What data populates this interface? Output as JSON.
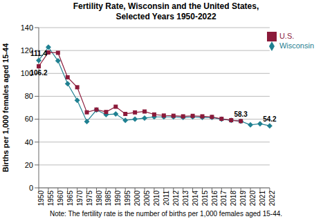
{
  "chart_data": {
    "type": "line",
    "title": "Fertility Rate, Wisconsin and the United States,\nSelected Years 1950-2022",
    "y_label": "Births per 1,000 females aged 15-44",
    "note": "Note: The fertility rate is the number of births per 1,000 females aged 15-44.",
    "categories": [
      "1950",
      "1955",
      "1960",
      "1965",
      "1970",
      "1975",
      "1980",
      "1985",
      "1990",
      "1995",
      "2000",
      "2005",
      "2010",
      "2011",
      "2012",
      "2013",
      "2014",
      "2015",
      "2016",
      "2017",
      "2018",
      "2019",
      "2020",
      "2021",
      "2022"
    ],
    "series": [
      {
        "name": "Wisconsin",
        "color": "#1f8091",
        "marker": "diamond",
        "values": [
          111.4,
          123,
          111,
          91,
          76.5,
          58,
          68,
          64,
          64.5,
          59,
          60,
          61,
          62,
          62,
          62,
          61.5,
          62,
          61.5,
          61.5,
          60,
          59,
          58.3,
          55,
          56,
          54.2
        ]
      },
      {
        "name": "U.S.",
        "color": "#8b1a3a",
        "marker": "square",
        "values": [
          106.2,
          118.3,
          118,
          96.6,
          87.9,
          66,
          68.4,
          66.3,
          70.9,
          64.6,
          65.9,
          66.7,
          64.1,
          63.2,
          63,
          62.5,
          62.9,
          62.5,
          62,
          60.3,
          59.1,
          58.3,
          null,
          null,
          null
        ]
      }
    ],
    "annotations": [
      {
        "series": "Wisconsin",
        "x": "1950",
        "label": "111.4"
      },
      {
        "series": "U.S.",
        "x": "1950",
        "label": "106.2"
      },
      {
        "series": "U.S.",
        "x": "2019",
        "label": "58.3"
      },
      {
        "series": "Wisconsin",
        "x": "2022",
        "label": "54.2"
      }
    ],
    "ylim": [
      0,
      140
    ],
    "yticks": [
      0,
      20,
      40,
      60,
      80,
      100,
      120,
      140
    ],
    "grid": true,
    "legend": "upper right"
  }
}
